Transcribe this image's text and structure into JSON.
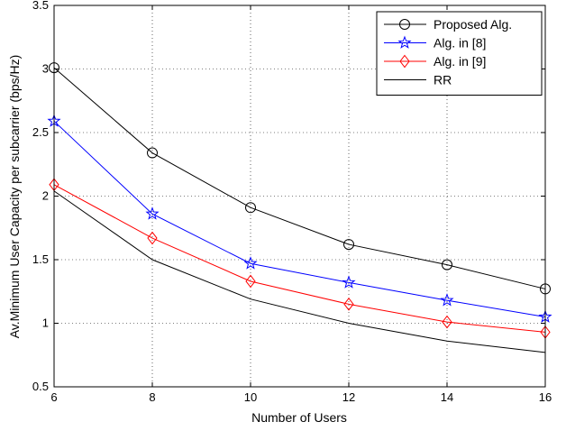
{
  "chart_data": {
    "type": "line",
    "title": "",
    "xlabel": "Number of Users",
    "ylabel": "Av.Minimum User Capacity per subcarrier (bps/Hz)",
    "xlim": [
      6,
      16
    ],
    "ylim": [
      0.5,
      3.5
    ],
    "x": [
      6,
      8,
      10,
      12,
      14,
      16
    ],
    "xticks": [
      "6",
      "8",
      "10",
      "12",
      "14",
      "16"
    ],
    "yticks": [
      "0.5",
      "1",
      "1.5",
      "2",
      "2.5",
      "3",
      "3.5"
    ],
    "grid": true,
    "legend_position": "top-right",
    "series": [
      {
        "name": "Proposed Alg.",
        "values": [
          3.01,
          2.34,
          1.91,
          1.62,
          1.46,
          1.27
        ],
        "color": "#000000",
        "marker": "circle"
      },
      {
        "name": "Alg. in [8]",
        "values": [
          2.59,
          1.86,
          1.47,
          1.32,
          1.18,
          1.05
        ],
        "color": "#0000ff",
        "marker": "star"
      },
      {
        "name": "Alg. in [9]",
        "values": [
          2.09,
          1.67,
          1.33,
          1.15,
          1.01,
          0.93
        ],
        "color": "#ff0000",
        "marker": "diamond"
      },
      {
        "name": "RR",
        "values": [
          2.04,
          1.5,
          1.19,
          1.0,
          0.86,
          0.77
        ],
        "color": "#000000",
        "marker": "none"
      }
    ]
  }
}
